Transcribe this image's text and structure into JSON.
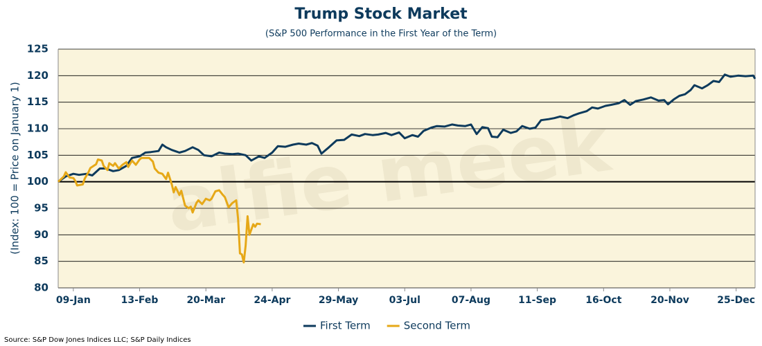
{
  "chart_data": {
    "type": "line",
    "title": "Trump Stock Market",
    "subtitle": "(S&P 500 Performance in the First Year of the Term)",
    "y_label": "(Index: 100 = Price on January 1)",
    "source": "Source: S&P Dow Jones Indices LLC; S&P Daily Indices",
    "watermark": "alfie meek",
    "xlim": [
      1,
      369
    ],
    "xticks": [
      {
        "value": 9,
        "label": "09-Jan"
      },
      {
        "value": 44,
        "label": "13-Feb"
      },
      {
        "value": 79,
        "label": "20-Mar"
      },
      {
        "value": 114,
        "label": "24-Apr"
      },
      {
        "value": 149,
        "label": "29-May"
      },
      {
        "value": 184,
        "label": "03-Jul"
      },
      {
        "value": 219,
        "label": "07-Aug"
      },
      {
        "value": 254,
        "label": "11-Sep"
      },
      {
        "value": 289,
        "label": "16-Oct"
      },
      {
        "value": 324,
        "label": "20-Nov"
      },
      {
        "value": 359,
        "label": "25-Dec"
      }
    ],
    "ylim": [
      80,
      125
    ],
    "yticks": [
      80,
      85,
      90,
      95,
      100,
      105,
      110,
      115,
      120,
      125
    ],
    "grid": true,
    "reference_line": 100,
    "legend": "bottom",
    "series": [
      {
        "name": "First Term",
        "color": "#0d3a5c",
        "x": [
          1,
          5,
          9,
          12,
          16,
          19,
          23,
          26,
          30,
          33,
          37,
          40,
          44,
          47,
          50,
          54,
          56,
          58,
          61,
          65,
          68,
          72,
          75,
          78,
          82,
          86,
          89,
          93,
          96,
          100,
          103,
          107,
          110,
          114,
          117,
          121,
          125,
          128,
          132,
          135,
          138,
          140,
          144,
          148,
          152,
          156,
          160,
          163,
          167,
          170,
          174,
          177,
          181,
          184,
          188,
          191,
          194,
          198,
          201,
          205,
          209,
          212,
          216,
          219,
          222,
          225,
          228,
          230,
          233,
          236,
          240,
          243,
          246,
          250,
          253,
          256,
          260,
          263,
          266,
          270,
          273,
          276,
          280,
          283,
          286,
          290,
          293,
          297,
          300,
          303,
          306,
          310,
          314,
          318,
          321,
          323,
          326,
          329,
          332,
          335,
          337,
          341,
          344,
          347,
          350,
          353,
          356,
          360,
          364,
          368,
          369
        ],
        "values": [
          100,
          101,
          101.5,
          101.3,
          101.5,
          101.2,
          102.5,
          102.5,
          102,
          102.2,
          103,
          104.5,
          104.8,
          105.5,
          105.6,
          105.8,
          107,
          106.5,
          106,
          105.5,
          105.8,
          106.5,
          106,
          105,
          104.8,
          105.5,
          105.3,
          105.2,
          105.3,
          105,
          104,
          104.8,
          104.5,
          105.5,
          106.7,
          106.6,
          107,
          107.2,
          107,
          107.3,
          106.8,
          105.3,
          106.5,
          107.8,
          107.9,
          108.9,
          108.6,
          109,
          108.8,
          108.9,
          109.2,
          108.8,
          109.3,
          108.2,
          108.8,
          108.5,
          109.6,
          110.2,
          110.5,
          110.4,
          110.8,
          110.6,
          110.5,
          110.8,
          109,
          110.3,
          110.1,
          108.5,
          108.4,
          109.8,
          109.2,
          109.5,
          110.5,
          110,
          110.2,
          111.6,
          111.8,
          112,
          112.3,
          112,
          112.5,
          112.9,
          113.3,
          114,
          113.8,
          114.3,
          114.5,
          114.8,
          115.4,
          114.5,
          115.2,
          115.5,
          115.9,
          115.3,
          115.4,
          114.6,
          115.5,
          116.2,
          116.5,
          117.3,
          118.2,
          117.6,
          118.2,
          119,
          118.8,
          120.2,
          119.8,
          120,
          119.9,
          120,
          119.4
        ]
      },
      {
        "name": "Second Term",
        "color": "#e6a817",
        "x": [
          1,
          4,
          5,
          7,
          9,
          10,
          11,
          14,
          15,
          17,
          18,
          21,
          22,
          24,
          25,
          27,
          28,
          30,
          31,
          33,
          35,
          37,
          38,
          40,
          42,
          44,
          45,
          49,
          51,
          52,
          54,
          56,
          58,
          59,
          61,
          62,
          63,
          65,
          66,
          68,
          70,
          71,
          72,
          74,
          75,
          77,
          79,
          81,
          82,
          84,
          86,
          88,
          89,
          91,
          93,
          95,
          96,
          97,
          98,
          99,
          100,
          101,
          102,
          104,
          105,
          106,
          108
        ],
        "values": [
          100,
          101,
          101.8,
          100.8,
          100.7,
          100.2,
          99.3,
          99.5,
          100.6,
          101.8,
          102.6,
          103.3,
          104.2,
          104,
          103,
          102.2,
          103.5,
          103,
          103.5,
          102.5,
          103.2,
          103.7,
          102.8,
          104,
          103.2,
          104.2,
          104.5,
          104.5,
          103.8,
          102.5,
          101.7,
          101.5,
          100.5,
          101.7,
          99.5,
          98,
          99,
          97.5,
          98.3,
          95.5,
          95,
          95.3,
          94.2,
          96,
          96.5,
          95.8,
          96.8,
          96.5,
          96.8,
          98.2,
          98.4,
          97.5,
          97.1,
          95.2,
          96,
          96.5,
          93,
          86.5,
          86.3,
          84.8,
          88,
          93.5,
          90,
          92,
          91.5,
          92.1,
          92
        ]
      }
    ]
  }
}
